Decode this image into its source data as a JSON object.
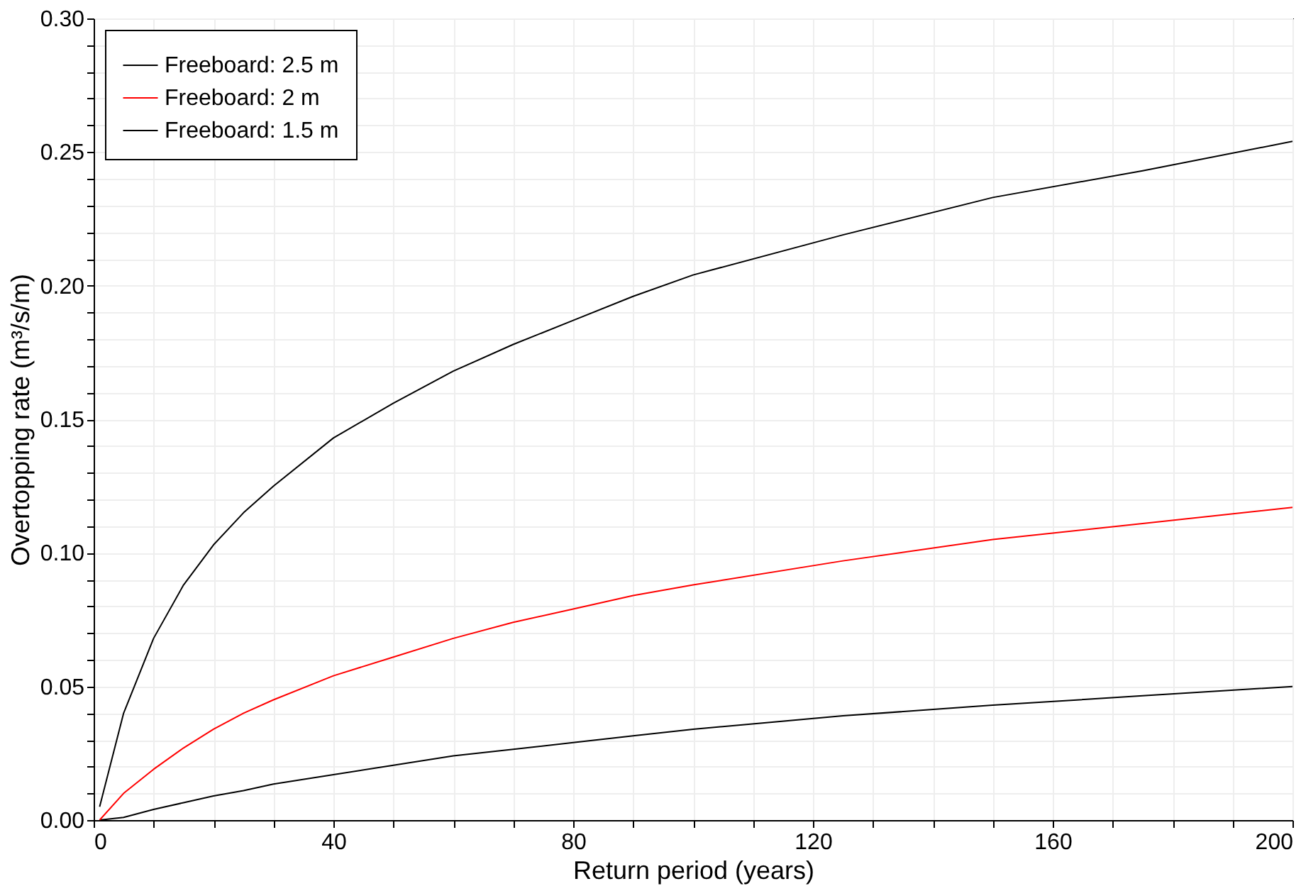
{
  "chart_data": {
    "type": "line",
    "xlabel": "Return period (years)",
    "ylabel": "Overtopping rate (m³/s/m)",
    "xlim": [
      0,
      200
    ],
    "ylim": [
      0,
      0.3
    ],
    "xticks": [
      0,
      {
        "value": 10,
        "label": null
      },
      {
        "value": 20,
        "label": null
      },
      {
        "value": 30,
        "label": null
      },
      40,
      {
        "value": 50,
        "label": null
      },
      {
        "value": 60,
        "label": null
      },
      {
        "value": 70,
        "label": null
      },
      80,
      {
        "value": 90,
        "label": null
      },
      {
        "value": 100,
        "label": null
      },
      {
        "value": 110,
        "label": null
      },
      120,
      {
        "value": 130,
        "label": null
      },
      {
        "value": 140,
        "label": null
      },
      {
        "value": 150,
        "label": null
      },
      160,
      {
        "value": 170,
        "label": null
      },
      {
        "value": 180,
        "label": null
      },
      {
        "value": 190,
        "label": null
      },
      200
    ],
    "yticks": [
      {
        "value": 0,
        "label": "0.00"
      },
      {
        "value": 0.01,
        "label": null
      },
      {
        "value": 0.02,
        "label": null
      },
      {
        "value": 0.03,
        "label": null
      },
      {
        "value": 0.04,
        "label": null
      },
      {
        "value": 0.05,
        "label": "0.05"
      },
      {
        "value": 0.06,
        "label": null
      },
      {
        "value": 0.07,
        "label": null
      },
      {
        "value": 0.08,
        "label": null
      },
      {
        "value": 0.09,
        "label": null
      },
      {
        "value": 0.1,
        "label": "0.10"
      },
      {
        "value": 0.11,
        "label": null
      },
      {
        "value": 0.12,
        "label": null
      },
      {
        "value": 0.13,
        "label": null
      },
      {
        "value": 0.14,
        "label": null
      },
      {
        "value": 0.15,
        "label": "0.15"
      },
      {
        "value": 0.16,
        "label": null
      },
      {
        "value": 0.17,
        "label": null
      },
      {
        "value": 0.18,
        "label": null
      },
      {
        "value": 0.19,
        "label": null
      },
      {
        "value": 0.2,
        "label": "0.20"
      },
      {
        "value": 0.21,
        "label": null
      },
      {
        "value": 0.22,
        "label": null
      },
      {
        "value": 0.23,
        "label": null
      },
      {
        "value": 0.24,
        "label": null
      },
      {
        "value": 0.25,
        "label": "0.25"
      },
      {
        "value": 0.26,
        "label": null
      },
      {
        "value": 0.27,
        "label": null
      },
      {
        "value": 0.28,
        "label": null
      },
      {
        "value": 0.29,
        "label": null
      },
      {
        "value": 0.3,
        "label": "0.30"
      }
    ],
    "x": [
      1,
      5,
      10,
      15,
      20,
      25,
      30,
      40,
      50,
      60,
      70,
      80,
      90,
      100,
      125,
      150,
      175,
      200
    ],
    "series": [
      {
        "name": "Freeboard: 2.5 m",
        "color": "#000000",
        "values": [
          0,
          0.001,
          0.004,
          0.0065,
          0.009,
          0.011,
          0.0135,
          0.017,
          0.0205,
          0.024,
          0.0265,
          0.029,
          0.0315,
          0.034,
          0.039,
          0.043,
          0.0465,
          0.05
        ]
      },
      {
        "name": "Freeboard: 2 m",
        "color": "#ff0000",
        "values": [
          0,
          0.01,
          0.019,
          0.027,
          0.034,
          0.04,
          0.045,
          0.054,
          0.061,
          0.068,
          0.074,
          0.079,
          0.084,
          0.088,
          0.097,
          0.105,
          0.111,
          0.117
        ]
      },
      {
        "name": "Freeboard: 1.5 m",
        "color": "#000000",
        "values": [
          0.005,
          0.04,
          0.068,
          0.088,
          0.103,
          0.115,
          0.125,
          0.143,
          0.156,
          0.168,
          0.178,
          0.187,
          0.196,
          0.204,
          0.219,
          0.233,
          0.243,
          0.254
        ]
      }
    ],
    "grid": true,
    "legend": "top left",
    "line_style": "solid",
    "marker": "none"
  }
}
